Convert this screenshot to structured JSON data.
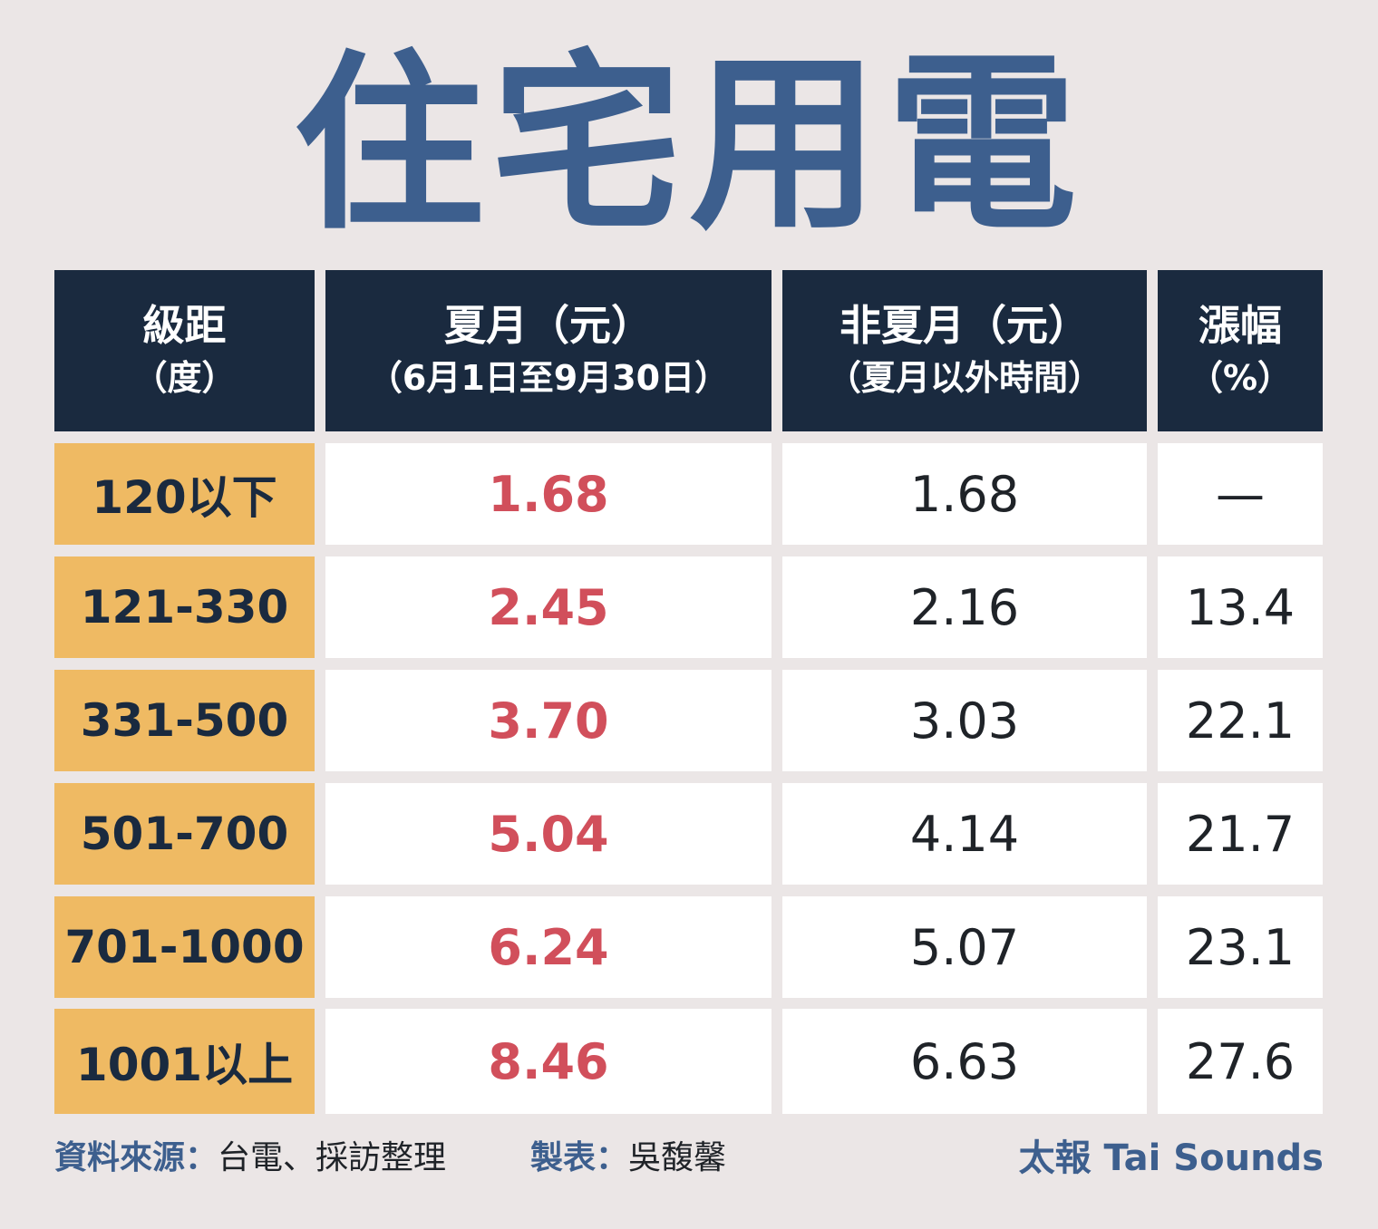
{
  "title": "住宅用電",
  "table": {
    "headers": [
      {
        "line1": "級距",
        "line2": "（度）"
      },
      {
        "line1": "夏月（元）",
        "line2": "（6月1日至9月30日）"
      },
      {
        "line1": "非夏月（元）",
        "line2": "（夏月以外時間）"
      },
      {
        "line1": "漲幅",
        "line2": "（%）"
      }
    ],
    "rows": [
      {
        "tier": "120以下",
        "summer": "1.68",
        "nonsummer": "1.68",
        "increase": "—"
      },
      {
        "tier": "121-330",
        "summer": "2.45",
        "nonsummer": "2.16",
        "increase": "13.4"
      },
      {
        "tier": "331-500",
        "summer": "3.70",
        "nonsummer": "3.03",
        "increase": "22.1"
      },
      {
        "tier": "501-700",
        "summer": "5.04",
        "nonsummer": "4.14",
        "increase": "21.7"
      },
      {
        "tier": "701-1000",
        "summer": "6.24",
        "nonsummer": "5.07",
        "increase": "23.1"
      },
      {
        "tier": "1001以上",
        "summer": "8.46",
        "nonsummer": "6.63",
        "increase": "27.6"
      }
    ]
  },
  "footer": {
    "source_label": "資料來源：",
    "source_value": "台電、採訪整理",
    "maker_label": "製表：",
    "maker_value": "吳馥馨",
    "brand": "太報 Tai Sounds"
  },
  "colors": {
    "background": "#ebe6e6",
    "title": "#3d5f8e",
    "header_bg": "#1a2a3f",
    "tier_bg": "#efba63",
    "summer_value": "#d14f5b",
    "cell_bg": "#ffffff"
  }
}
